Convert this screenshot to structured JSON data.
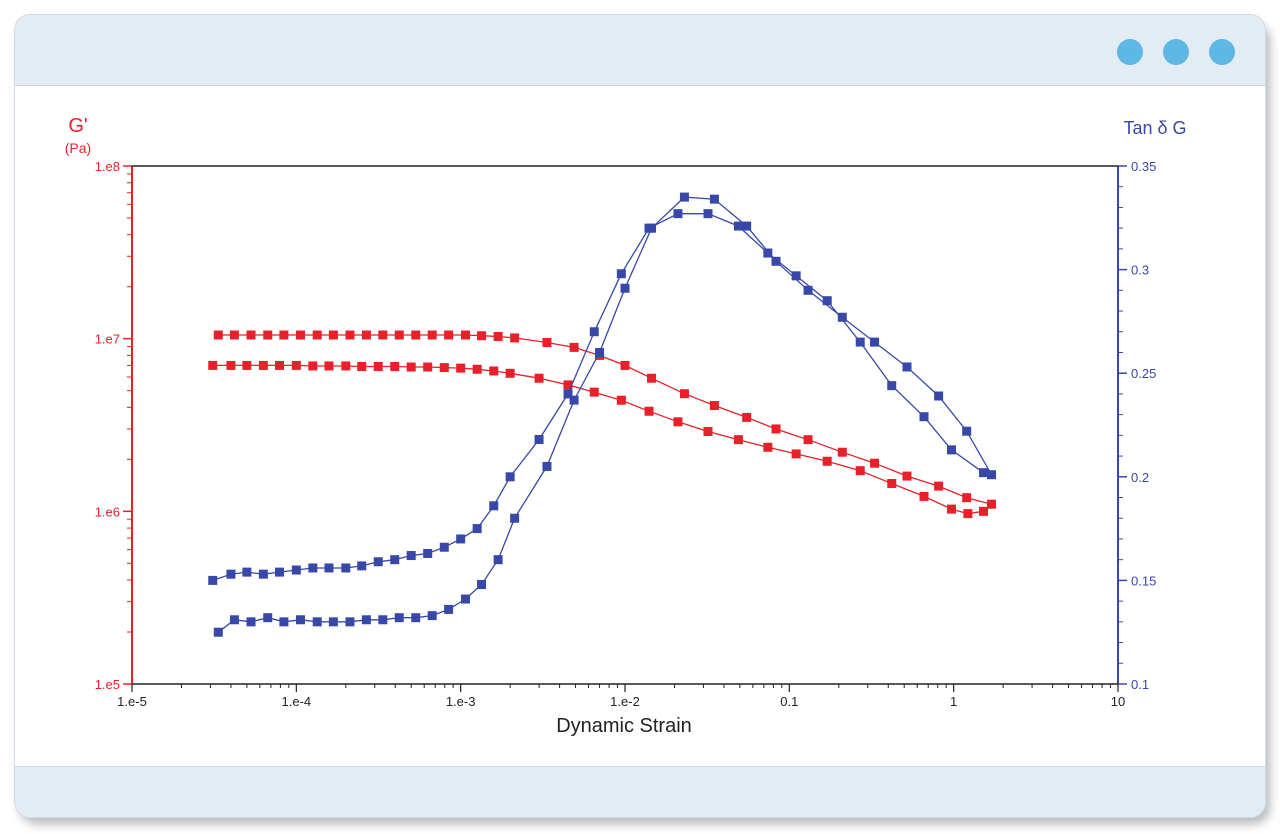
{
  "window": {
    "dots": [
      "dot",
      "dot",
      "dot"
    ],
    "accent": "#5fb7e4",
    "chrome": "#e3ebf3"
  },
  "chart_data": {
    "type": "scatter",
    "x_scale": "log",
    "xlim": [
      1e-05,
      10
    ],
    "x_ticks": [
      "1.e-5",
      "1.e-4",
      "1.e-3",
      "1.e-2",
      "0.1",
      "1",
      "10"
    ],
    "x_tick_values": [
      1e-05,
      0.0001,
      0.001,
      0.01,
      0.1,
      1,
      10
    ],
    "xlabel": "Dynamic Strain",
    "y_left": {
      "label": "G'",
      "unit": "(Pa)",
      "scale": "log",
      "lim": [
        100000,
        100000000
      ],
      "ticks": [
        "1.e5",
        "1.e6",
        "1.e7",
        "1.e8"
      ],
      "tick_values": [
        100000,
        1000000,
        10000000,
        100000000
      ],
      "color": "#e8202a"
    },
    "y_right": {
      "label": "Tan δ G",
      "scale": "linear",
      "lim": [
        0.1,
        0.35
      ],
      "ticks": [
        "0.1",
        "0.15",
        "0.2",
        "0.25",
        "0.3",
        "0.35"
      ],
      "tick_values": [
        0.1,
        0.15,
        0.2,
        0.25,
        0.3,
        0.35
      ],
      "color": "#3848a8"
    },
    "grid": false,
    "series": [
      {
        "axis": "left",
        "color": "#e8202a",
        "points": [
          [
            3.35e-05,
            10500000.0
          ],
          [
            4.2e-05,
            10500000.0
          ],
          [
            5.3e-05,
            10500000.0
          ],
          [
            6.7e-05,
            10500000.0
          ],
          [
            8.4e-05,
            10500000.0
          ],
          [
            0.000106,
            10500000.0
          ],
          [
            0.000134,
            10500000.0
          ],
          [
            0.000168,
            10500000.0
          ],
          [
            0.000212,
            10500000.0
          ],
          [
            0.000267,
            10500000.0
          ],
          [
            0.000336,
            10500000.0
          ],
          [
            0.000423,
            10500000.0
          ],
          [
            0.000533,
            10500000.0
          ],
          [
            0.000671,
            10500000.0
          ],
          [
            0.000845,
            10500000.0
          ],
          [
            0.00107,
            10500000.0
          ],
          [
            0.00134,
            10400000.0
          ],
          [
            0.00169,
            10300000.0
          ],
          [
            0.00213,
            10100000.0
          ],
          [
            0.00335,
            9500000.0
          ],
          [
            0.0049,
            8900000.0
          ],
          [
            0.007,
            8000000.0
          ],
          [
            0.01,
            7000000.0
          ],
          [
            0.0145,
            5900000.0
          ],
          [
            0.023,
            4800000.0
          ],
          [
            0.035,
            4100000.0
          ],
          [
            0.055,
            3500000.0
          ],
          [
            0.083,
            3000000.0
          ],
          [
            0.13,
            2600000.0
          ],
          [
            0.21,
            2200000.0
          ],
          [
            0.33,
            1900000.0
          ],
          [
            0.52,
            1600000.0
          ],
          [
            0.81,
            1400000.0
          ],
          [
            1.2,
            1200000.0
          ],
          [
            1.7,
            1100000.0
          ]
        ]
      },
      {
        "axis": "left",
        "color": "#e8202a",
        "points": [
          [
            3.1e-05,
            7000000.0
          ],
          [
            4e-05,
            7000000.0
          ],
          [
            5e-05,
            7000000.0
          ],
          [
            6.3e-05,
            7000000.0
          ],
          [
            7.9e-05,
            7000000.0
          ],
          [
            0.0001,
            7000000.0
          ],
          [
            0.000126,
            6950000.0
          ],
          [
            0.000158,
            6950000.0
          ],
          [
            0.0002,
            6950000.0
          ],
          [
            0.00025,
            6900000.0
          ],
          [
            0.000315,
            6900000.0
          ],
          [
            0.000397,
            6900000.0
          ],
          [
            0.0005,
            6850000.0
          ],
          [
            0.00063,
            6850000.0
          ],
          [
            0.000795,
            6800000.0
          ],
          [
            0.001,
            6750000.0
          ],
          [
            0.00126,
            6650000.0
          ],
          [
            0.00159,
            6500000.0
          ],
          [
            0.002,
            6300000.0
          ],
          [
            0.003,
            5900000.0
          ],
          [
            0.0045,
            5400000.0
          ],
          [
            0.0065,
            4900000.0
          ],
          [
            0.0095,
            4400000.0
          ],
          [
            0.014,
            3800000.0
          ],
          [
            0.021,
            3300000.0
          ],
          [
            0.032,
            2900000.0
          ],
          [
            0.049,
            2600000.0
          ],
          [
            0.074,
            2350000.0
          ],
          [
            0.11,
            2150000.0
          ],
          [
            0.17,
            1950000.0
          ],
          [
            0.27,
            1720000.0
          ],
          [
            0.42,
            1450000.0
          ],
          [
            0.66,
            1220000.0
          ],
          [
            0.97,
            1030000.0
          ],
          [
            1.22,
            970000.0
          ],
          [
            1.52,
            1000000.0
          ]
        ]
      },
      {
        "axis": "right",
        "color": "#3848a8",
        "points": [
          [
            3.1e-05,
            0.15
          ],
          [
            4e-05,
            0.153
          ],
          [
            5e-05,
            0.154
          ],
          [
            6.3e-05,
            0.153
          ],
          [
            7.9e-05,
            0.154
          ],
          [
            0.0001,
            0.155
          ],
          [
            0.000126,
            0.156
          ],
          [
            0.000158,
            0.156
          ],
          [
            0.0002,
            0.156
          ],
          [
            0.00025,
            0.157
          ],
          [
            0.000315,
            0.159
          ],
          [
            0.000397,
            0.16
          ],
          [
            0.0005,
            0.162
          ],
          [
            0.00063,
            0.163
          ],
          [
            0.000795,
            0.166
          ],
          [
            0.001,
            0.17
          ],
          [
            0.00126,
            0.175
          ],
          [
            0.00159,
            0.186
          ],
          [
            0.002,
            0.2
          ],
          [
            0.003,
            0.218
          ],
          [
            0.0045,
            0.24
          ],
          [
            0.0065,
            0.27
          ],
          [
            0.0095,
            0.298
          ],
          [
            0.014,
            0.32
          ],
          [
            0.021,
            0.327
          ],
          [
            0.032,
            0.327
          ],
          [
            0.049,
            0.321
          ],
          [
            0.074,
            0.308
          ],
          [
            0.11,
            0.297
          ],
          [
            0.17,
            0.285
          ],
          [
            0.27,
            0.265
          ],
          [
            0.42,
            0.244
          ],
          [
            0.66,
            0.229
          ],
          [
            0.97,
            0.213
          ],
          [
            1.52,
            0.202
          ]
        ]
      },
      {
        "axis": "right",
        "color": "#3848a8",
        "points": [
          [
            3.35e-05,
            0.125
          ],
          [
            4.2e-05,
            0.131
          ],
          [
            5.3e-05,
            0.13
          ],
          [
            6.7e-05,
            0.132
          ],
          [
            8.4e-05,
            0.13
          ],
          [
            0.000106,
            0.131
          ],
          [
            0.000134,
            0.13
          ],
          [
            0.000168,
            0.13
          ],
          [
            0.000212,
            0.13
          ],
          [
            0.000267,
            0.131
          ],
          [
            0.000336,
            0.131
          ],
          [
            0.000423,
            0.132
          ],
          [
            0.000533,
            0.132
          ],
          [
            0.000671,
            0.133
          ],
          [
            0.000845,
            0.136
          ],
          [
            0.00107,
            0.141
          ],
          [
            0.00134,
            0.148
          ],
          [
            0.00169,
            0.16
          ],
          [
            0.00213,
            0.18
          ],
          [
            0.00335,
            0.205
          ],
          [
            0.0049,
            0.237
          ],
          [
            0.007,
            0.26
          ],
          [
            0.01,
            0.291
          ],
          [
            0.0145,
            0.32
          ],
          [
            0.023,
            0.335
          ],
          [
            0.035,
            0.334
          ],
          [
            0.055,
            0.321
          ],
          [
            0.083,
            0.304
          ],
          [
            0.13,
            0.29
          ],
          [
            0.21,
            0.277
          ],
          [
            0.33,
            0.265
          ],
          [
            0.52,
            0.253
          ],
          [
            0.81,
            0.239
          ],
          [
            1.2,
            0.222
          ],
          [
            1.7,
            0.201
          ]
        ]
      }
    ]
  }
}
